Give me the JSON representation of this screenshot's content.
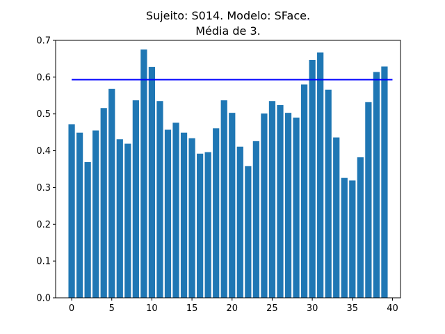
{
  "chart_data": {
    "type": "bar",
    "title": "Sujeito: S014. Modelo: SFace.",
    "subtitle": "Média de 3.",
    "xlabel": "",
    "ylabel": "",
    "xlim": [
      -2,
      41
    ],
    "ylim": [
      0,
      0.7
    ],
    "x": [
      0,
      1,
      2,
      3,
      4,
      5,
      6,
      7,
      8,
      9,
      10,
      11,
      12,
      13,
      14,
      15,
      16,
      17,
      18,
      19,
      20,
      21,
      22,
      23,
      24,
      25,
      26,
      27,
      28,
      29,
      30,
      31,
      32,
      33,
      34,
      35,
      36,
      37,
      38,
      39
    ],
    "values": [
      0.472,
      0.449,
      0.369,
      0.455,
      0.516,
      0.568,
      0.431,
      0.419,
      0.537,
      0.675,
      0.628,
      0.535,
      0.457,
      0.476,
      0.449,
      0.434,
      0.392,
      0.396,
      0.461,
      0.537,
      0.503,
      0.411,
      0.358,
      0.426,
      0.501,
      0.535,
      0.524,
      0.503,
      0.49,
      0.58,
      0.647,
      0.667,
      0.566,
      0.436,
      0.326,
      0.319,
      0.382,
      0.532,
      0.614,
      0.629
    ],
    "bar_color": "#1f77b4",
    "reference_line": {
      "y": 0.593,
      "x_range": [
        0,
        40
      ],
      "color": "#0000ff"
    },
    "x_ticks": [
      0,
      5,
      10,
      15,
      20,
      25,
      30,
      35,
      40
    ],
    "y_ticks": [
      0.0,
      0.1,
      0.2,
      0.3,
      0.4,
      0.5,
      0.6,
      0.7
    ],
    "x_tick_labels": [
      "0",
      "5",
      "10",
      "15",
      "20",
      "25",
      "30",
      "35",
      "40"
    ],
    "y_tick_labels": [
      "0.0",
      "0.1",
      "0.2",
      "0.3",
      "0.4",
      "0.5",
      "0.6",
      "0.7"
    ],
    "grid": false
  }
}
